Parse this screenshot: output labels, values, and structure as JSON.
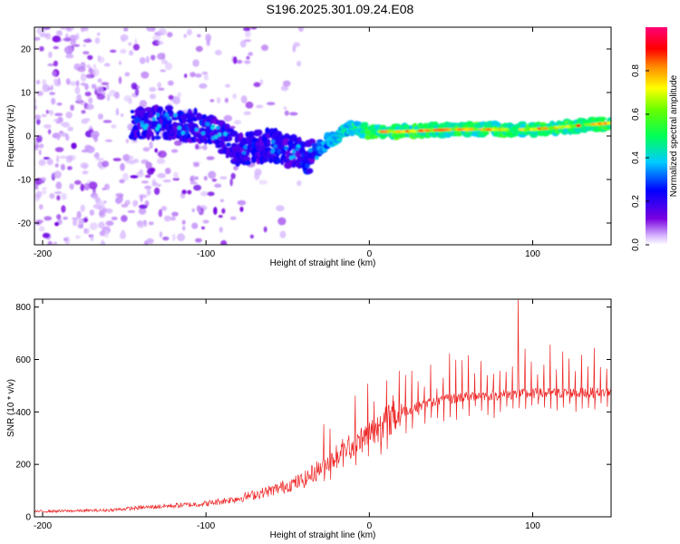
{
  "title": "S196.2025.301.09.24.E08",
  "chart_data": [
    {
      "type": "heatmap",
      "xlabel": "Height of straight line (km)",
      "ylabel": "Frequency (Hz)",
      "xlim": [
        -205,
        148
      ],
      "ylim": [
        -25,
        25
      ],
      "x_ticks": [
        -200,
        -100,
        0,
        100
      ],
      "y_ticks": [
        -20,
        -10,
        0,
        10,
        20
      ],
      "colorbar": {
        "label": "Normalized spectral amplitude",
        "range": [
          0,
          1
        ],
        "ticks": [
          0.0,
          0.2,
          0.4,
          0.6,
          0.8
        ],
        "tick_labels": [
          "0.0",
          "0.2",
          "0.4",
          "0.6",
          "0.8"
        ]
      },
      "ridge": [
        {
          "x": -140,
          "f": 3
        },
        {
          "x": -120,
          "f": 3
        },
        {
          "x": -100,
          "f": 2
        },
        {
          "x": -80,
          "f": -3
        },
        {
          "x": -60,
          "f": -2
        },
        {
          "x": -45,
          "f": -4
        },
        {
          "x": -38,
          "f": -5
        },
        {
          "x": -25,
          "f": -1
        },
        {
          "x": -10,
          "f": 2
        },
        {
          "x": 0,
          "f": 1
        },
        {
          "x": 20,
          "f": 1
        },
        {
          "x": 50,
          "f": 1.5
        },
        {
          "x": 100,
          "f": 1.5
        },
        {
          "x": 148,
          "f": 3
        }
      ]
    },
    {
      "type": "line",
      "xlabel": "Height of straight line (km)",
      "ylabel": "SNR (10 * v/v)",
      "xlim": [
        -205,
        148
      ],
      "ylim": [
        0,
        830
      ],
      "x_ticks": [
        -200,
        -100,
        0,
        100
      ],
      "y_ticks": [
        0,
        200,
        400,
        600,
        800
      ],
      "color": "#ee2222",
      "trend": [
        {
          "x": -205,
          "y": 20
        },
        {
          "x": -160,
          "y": 25
        },
        {
          "x": -140,
          "y": 35
        },
        {
          "x": -100,
          "y": 50
        },
        {
          "x": -80,
          "y": 70
        },
        {
          "x": -60,
          "y": 100
        },
        {
          "x": -40,
          "y": 140
        },
        {
          "x": -27,
          "y": 200
        },
        {
          "x": -10,
          "y": 270
        },
        {
          "x": 0,
          "y": 320
        },
        {
          "x": 10,
          "y": 360
        },
        {
          "x": 20,
          "y": 400
        },
        {
          "x": 40,
          "y": 440
        },
        {
          "x": 60,
          "y": 460
        },
        {
          "x": 100,
          "y": 470
        },
        {
          "x": 148,
          "y": 475
        }
      ],
      "peaks": [
        {
          "x": 91,
          "y": 830
        }
      ]
    }
  ]
}
